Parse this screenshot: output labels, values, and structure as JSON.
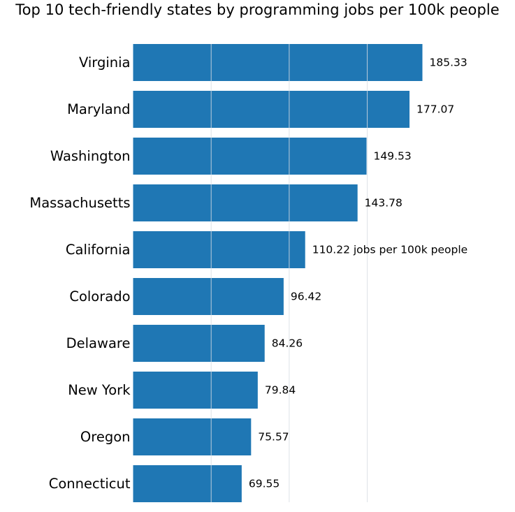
{
  "chart_data": {
    "type": "bar",
    "orientation": "horizontal",
    "title": "Top 10 tech-friendly states by programming jobs per 100k people",
    "categories": [
      "Virginia",
      "Maryland",
      "Washington",
      "Massachusetts",
      "California",
      "Colorado",
      "Delaware",
      "New York",
      "Oregon",
      "Connecticut"
    ],
    "values": [
      185.33,
      177.07,
      149.53,
      143.78,
      110.22,
      96.42,
      84.26,
      79.84,
      75.57,
      69.55
    ],
    "data_labels": [
      "185.33",
      "177.07",
      "149.53",
      "143.78",
      "110.22 jobs per 100k people",
      "96.42",
      "84.26",
      "79.84",
      "75.57",
      "69.55"
    ],
    "xlabel": "",
    "ylabel": "",
    "xlim": [
      0,
      185.33
    ],
    "gridlines_at": [
      50,
      100,
      150
    ],
    "grid": true,
    "axes_visible": false,
    "bar_color": "#1f77b4",
    "grid_color": "#d9dde3"
  }
}
